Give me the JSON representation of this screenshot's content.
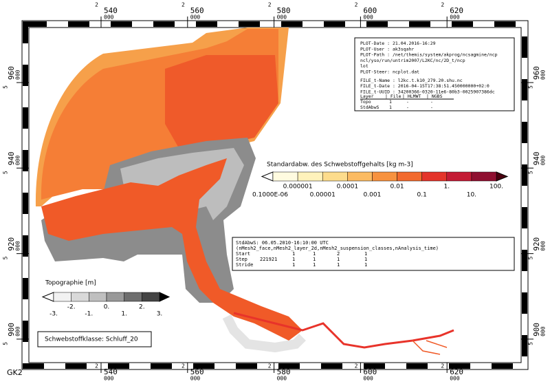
{
  "grid_label": "GK2",
  "x_ticks": [
    [
      "2",
      "540",
      "000"
    ],
    [
      "2",
      "560",
      "000"
    ],
    [
      "2",
      "580",
      "000"
    ],
    [
      "2",
      "600",
      "000"
    ],
    [
      "2",
      "620",
      "000"
    ]
  ],
  "y_ticks": [
    [
      "5",
      "960",
      "000"
    ],
    [
      "5",
      "940",
      "000"
    ],
    [
      "5",
      "920",
      "000"
    ],
    [
      "5",
      "900",
      "000"
    ]
  ],
  "plot_info": {
    "lines": [
      "PLOT-Date : 21.04.2016-16:29",
      "PLOT-User : ak3sqahr",
      "PLOT-Path : /net/themis/system/akprog/ncsagmine/ncp",
      "           ncl/yso/run/untrim2007/L2KC/nc/2D_t/ncp",
      "           lot",
      "PLOT-Steer: ncplot.dat",
      "FILE_t-Name : l2kc.t.k10_279.20.shu.nc",
      "FILE_t-Date : 2016-04-15T17:38:51.450000000+02:0",
      "FILE_t-UUID : 34200366-0320-11e6-80b3-0025907386dc"
    ],
    "table": [
      [
        "Layer",
        "| File",
        "| HLMWT",
        "| NGBS"
      ],
      [
        "Topo",
        "1",
        "-",
        "-"
      ],
      [
        "StdAbwS",
        "1",
        "-",
        "-"
      ]
    ]
  },
  "colorbar": {
    "title": "Standardabw. des Schwebstoffgehalts [kg m-3]",
    "labels": [
      "0.1000E-06",
      "0.000001",
      "0.00001",
      "0.0001",
      "0.001",
      "0.01",
      "0.1",
      "1.",
      "10.",
      "100."
    ]
  },
  "variable_info": {
    "lines": [
      "StdAbwS: 06.05.2010-16:10:00 UTC",
      "(nMesh2_face,nMesh2_layer_2d,nMesh2_suspension_classes,nAnalysis_time)"
    ],
    "rows": [
      [
        "Start",
        "",
        "1",
        "1",
        "2",
        "1"
      ],
      [
        "Step",
        "221921",
        "1",
        "1",
        "1",
        "1"
      ],
      [
        "Stride",
        "",
        "1",
        "1",
        "1",
        "1"
      ]
    ]
  },
  "topography": {
    "title": "Topographie [m]",
    "labels": [
      "-3.",
      "-2.",
      "-1.",
      "0.",
      "1.",
      "2.",
      "3."
    ]
  },
  "class_label": "Schwebstoffklasse: Schluff_20"
}
